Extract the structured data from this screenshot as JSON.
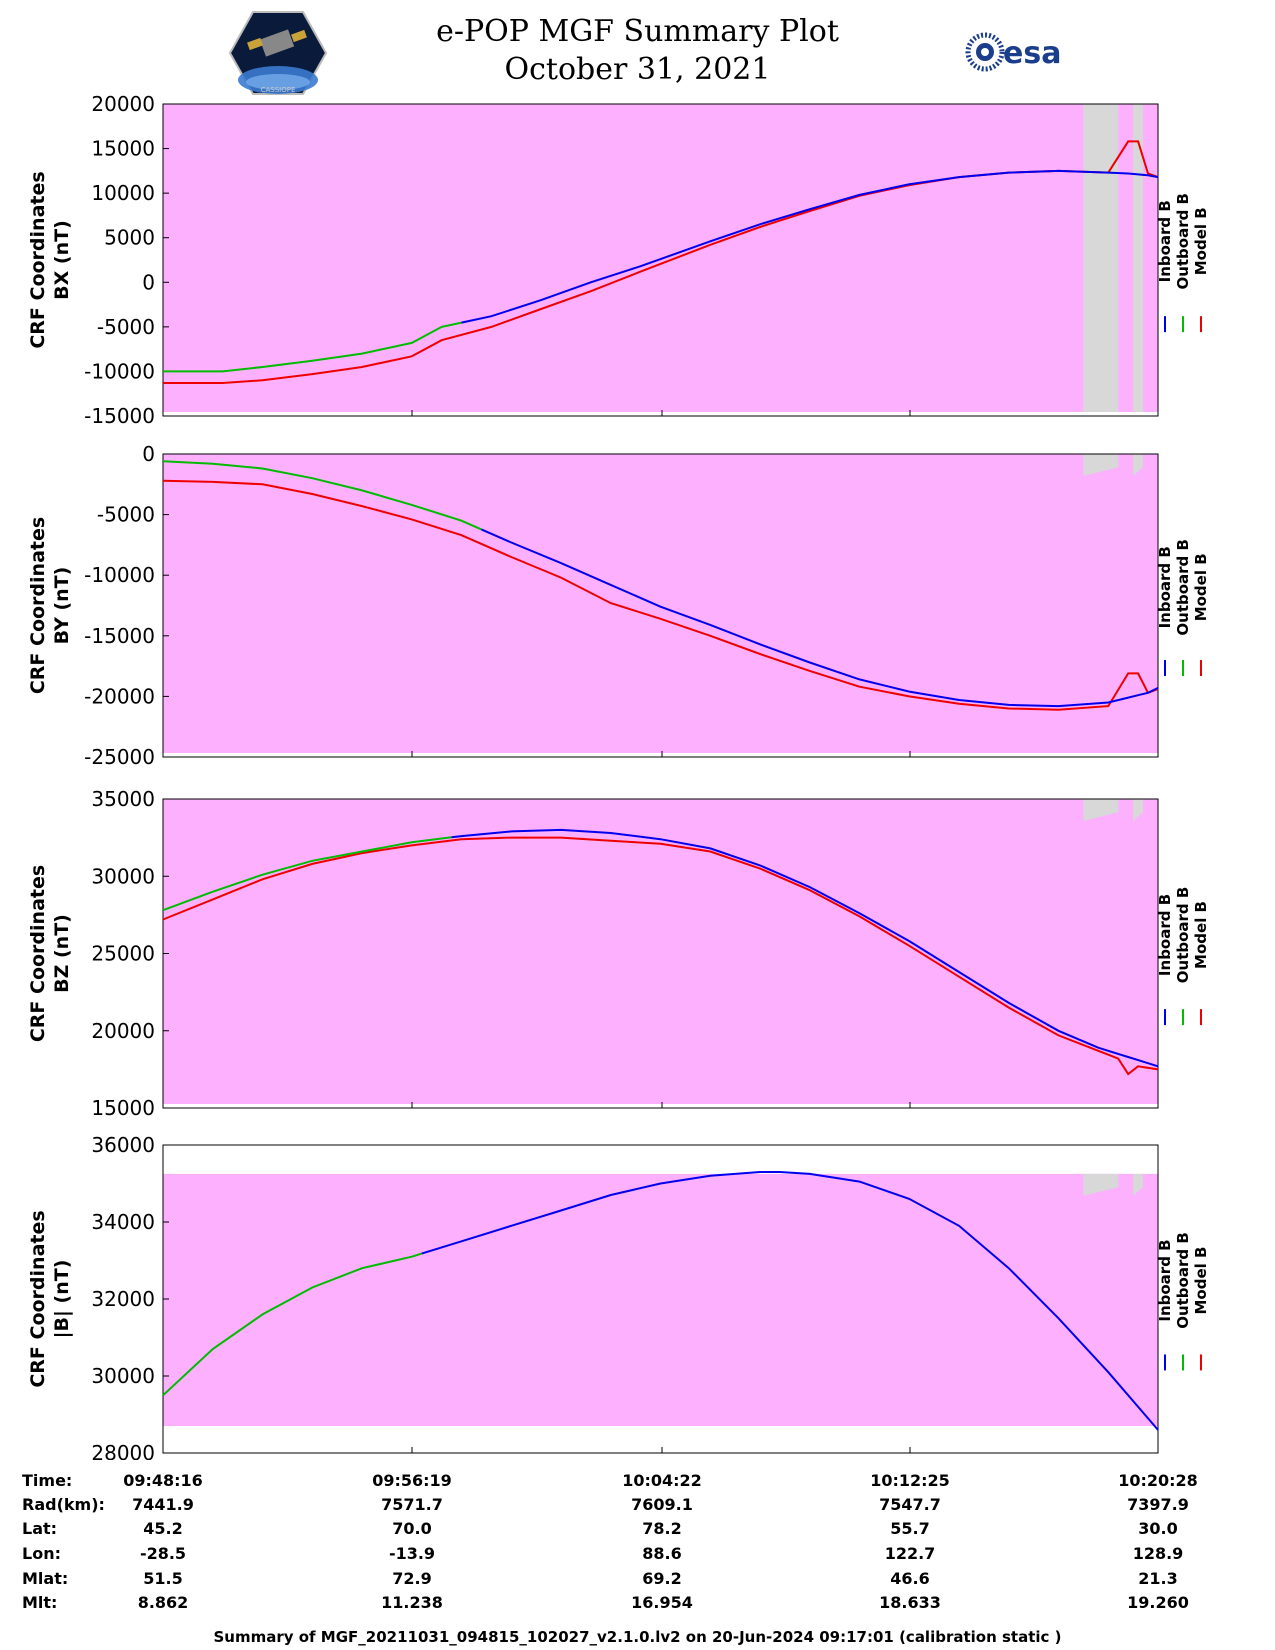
{
  "header": {
    "title": "e-POP MGF Summary Plot",
    "date": "October 31, 2021",
    "agency_logo_text": "esa",
    "mission_logo_text": "CASSIOPE"
  },
  "colors": {
    "background": "#fdb0fd",
    "gap": "#d8d8d8",
    "inboard": "#0000ee",
    "outboard": "#00bb00",
    "model": "#ee0000"
  },
  "legend": [
    "Inboard B",
    "Outboard B",
    "Model B"
  ],
  "chart_data": [
    {
      "type": "line",
      "ylabel_lines": [
        "CRF Coordinates",
        "BX (nT)"
      ],
      "ylim": [
        -15000,
        20000
      ],
      "yticks": [
        20000,
        15000,
        10000,
        5000,
        0,
        -5000,
        -10000,
        -15000
      ],
      "ytick_labels": [
        "20000",
        "15000",
        "10000",
        "5000",
        "0",
        "-5000",
        "-10000",
        "-15000"
      ],
      "x": [
        0,
        0.03,
        0.06,
        0.1,
        0.15,
        0.2,
        0.25,
        0.28,
        0.33,
        0.38,
        0.43,
        0.48,
        0.55,
        0.6,
        0.65,
        0.7,
        0.75,
        0.8,
        0.85,
        0.9,
        0.95,
        0.97,
        0.98,
        0.99,
        1.0
      ],
      "series": [
        {
          "name": "Inboard B",
          "color_key": "inboard",
          "from": 0.3,
          "values": [
            -10000,
            -10000,
            -10000,
            -9500,
            -8800,
            -8000,
            -6800,
            -5000,
            -3800,
            -2000,
            0,
            1800,
            4600,
            6500,
            8200,
            9800,
            11000,
            11800,
            12300,
            12500,
            12300,
            12200,
            12100,
            12000,
            11800
          ]
        },
        {
          "name": "Outboard B",
          "color_key": "outboard",
          "to": 0.3,
          "values": [
            -10000,
            -10000,
            -10000,
            -9500,
            -8800,
            -8000,
            -6800,
            -5000,
            -3800,
            -2000,
            0,
            1800,
            4600,
            6500,
            8200,
            9800,
            11000,
            11800,
            12300,
            12500,
            12300,
            12200,
            12100,
            12000,
            11800
          ]
        },
        {
          "name": "Model B",
          "color_key": "model",
          "values": [
            -11300,
            -11300,
            -11300,
            -11000,
            -10300,
            -9500,
            -8300,
            -6500,
            -5000,
            -3000,
            -1000,
            1200,
            4200,
            6200,
            8000,
            9700,
            10900,
            11800,
            12300,
            12500,
            12300,
            15800,
            15800,
            12200,
            11800
          ]
        }
      ],
      "gaps": [
        [
          0.925,
          0.96
        ],
        [
          0.975,
          0.985
        ]
      ]
    },
    {
      "type": "line",
      "ylabel_lines": [
        "CRF Coordinates",
        "BY (nT)"
      ],
      "ylim": [
        -25000,
        0
      ],
      "yticks": [
        0,
        -5000,
        -10000,
        -15000,
        -20000,
        -25000
      ],
      "ytick_labels": [
        "0",
        "-5000",
        "-10000",
        "-15000",
        "-20000",
        "-25000"
      ],
      "x": [
        0,
        0.05,
        0.1,
        0.15,
        0.2,
        0.25,
        0.3,
        0.35,
        0.4,
        0.45,
        0.5,
        0.55,
        0.6,
        0.65,
        0.7,
        0.75,
        0.8,
        0.85,
        0.9,
        0.95,
        0.97,
        0.98,
        0.99,
        1.0
      ],
      "series": [
        {
          "name": "Inboard B",
          "color_key": "inboard",
          "from": 0.32,
          "values": [
            -600,
            -800,
            -1200,
            -2000,
            -3000,
            -4200,
            -5500,
            -7300,
            -9000,
            -10800,
            -12600,
            -14100,
            -15700,
            -17200,
            -18600,
            -19600,
            -20300,
            -20700,
            -20800,
            -20500,
            -20100,
            -19900,
            -19700,
            -19300
          ]
        },
        {
          "name": "Outboard B",
          "color_key": "outboard",
          "to": 0.32,
          "values": [
            -600,
            -800,
            -1200,
            -2000,
            -3000,
            -4200,
            -5500,
            -7300,
            -9000,
            -10800,
            -12600,
            -14100,
            -15700,
            -17200,
            -18600,
            -19600,
            -20300,
            -20700,
            -20800,
            -20500,
            -20100,
            -19900,
            -19700,
            -19300
          ]
        },
        {
          "name": "Model B",
          "color_key": "model",
          "values": [
            -2200,
            -2300,
            -2500,
            -3300,
            -4300,
            -5400,
            -6700,
            -8500,
            -10200,
            -12300,
            -13600,
            -15000,
            -16500,
            -17900,
            -19200,
            -20000,
            -20600,
            -21000,
            -21100,
            -20800,
            -18100,
            -18100,
            -19700,
            -19400
          ]
        }
      ],
      "gaps": [
        [
          0.925,
          0.96
        ],
        [
          0.975,
          0.985
        ]
      ]
    },
    {
      "type": "line",
      "ylabel_lines": [
        "CRF Coordinates",
        "BZ (nT)"
      ],
      "ylim": [
        15000,
        35000
      ],
      "yticks": [
        35000,
        30000,
        25000,
        20000,
        15000
      ],
      "ytick_labels": [
        "35000",
        "30000",
        "25000",
        "20000",
        "15000"
      ],
      "x": [
        0,
        0.05,
        0.1,
        0.15,
        0.2,
        0.25,
        0.3,
        0.35,
        0.4,
        0.45,
        0.5,
        0.55,
        0.6,
        0.65,
        0.7,
        0.75,
        0.8,
        0.85,
        0.9,
        0.94,
        0.96,
        0.97,
        0.98,
        1.0
      ],
      "series": [
        {
          "name": "Inboard B",
          "color_key": "inboard",
          "from": 0.29,
          "values": [
            27800,
            29000,
            30100,
            31000,
            31600,
            32200,
            32600,
            32900,
            33000,
            32800,
            32400,
            31800,
            30700,
            29300,
            27600,
            25800,
            23800,
            21800,
            20000,
            18900,
            18500,
            18300,
            18100,
            17700
          ]
        },
        {
          "name": "Outboard B",
          "color_key": "outboard",
          "to": 0.29,
          "values": [
            27800,
            29000,
            30100,
            31000,
            31600,
            32200,
            32600,
            32900,
            33000,
            32800,
            32400,
            31800,
            30700,
            29300,
            27600,
            25800,
            23800,
            21800,
            20000,
            18900,
            18500,
            18300,
            18100,
            17700
          ]
        },
        {
          "name": "Model B",
          "color_key": "model",
          "values": [
            27200,
            28500,
            29800,
            30800,
            31500,
            32000,
            32400,
            32500,
            32500,
            32300,
            32100,
            31600,
            30500,
            29100,
            27400,
            25500,
            23500,
            21500,
            19700,
            18700,
            18200,
            17200,
            17700,
            17500
          ]
        }
      ],
      "gaps": [
        [
          0.925,
          0.96
        ],
        [
          0.975,
          0.985
        ]
      ]
    },
    {
      "type": "line",
      "ylabel_lines": [
        "CRF Coordinates",
        "|B| (nT)"
      ],
      "ylim": [
        28000,
        36000
      ],
      "yticks": [
        36000,
        34000,
        32000,
        30000,
        28000
      ],
      "ytick_labels": [
        "36000",
        "34000",
        "32000",
        "30000",
        "28000"
      ],
      "x": [
        0,
        0.05,
        0.1,
        0.15,
        0.2,
        0.25,
        0.3,
        0.35,
        0.4,
        0.45,
        0.5,
        0.55,
        0.6,
        0.62,
        0.65,
        0.7,
        0.75,
        0.8,
        0.85,
        0.9,
        0.95,
        1.0
      ],
      "series": [
        {
          "name": "Inboard B",
          "color_key": "inboard",
          "from": 0.26,
          "values": [
            29500,
            30700,
            31600,
            32300,
            32800,
            33100,
            33500,
            33900,
            34300,
            34700,
            35000,
            35200,
            35300,
            35300,
            35250,
            35050,
            34600,
            33900,
            32800,
            31500,
            30100,
            28600
          ]
        },
        {
          "name": "Outboard B",
          "color_key": "outboard",
          "to": 0.26,
          "values": [
            29500,
            30700,
            31600,
            32300,
            32800,
            33100,
            33500,
            33900,
            34300,
            34700,
            35000,
            35200,
            35300,
            35300,
            35250,
            35050,
            34600,
            33900,
            32800,
            31500,
            30100,
            28600
          ]
        }
      ],
      "gaps": [
        [
          0.925,
          0.96
        ],
        [
          0.975,
          0.985
        ]
      ],
      "background_range": [
        28700,
        35250
      ]
    }
  ],
  "table": {
    "row_labels": [
      "Time:",
      "Rad(km):",
      "Lat:",
      "Lon:",
      "Mlat:",
      "Mlt:"
    ],
    "columns": [
      [
        "09:48:16",
        "7441.9",
        "45.2",
        "-28.5",
        "51.5",
        "8.862"
      ],
      [
        "09:56:19",
        "7571.7",
        "70.0",
        "-13.9",
        "72.9",
        "11.238"
      ],
      [
        "10:04:22",
        "7609.1",
        "78.2",
        "88.6",
        "69.2",
        "16.954"
      ],
      [
        "10:12:25",
        "7547.7",
        "55.7",
        "122.7",
        "46.6",
        "18.633"
      ],
      [
        "10:20:28",
        "7397.9",
        "30.0",
        "128.9",
        "21.3",
        "19.260"
      ]
    ]
  },
  "footer": "Summary of MGF_20211031_094815_102027_v2.1.0.lv2 on 20-Jun-2024 09:17:01 (calibration static )"
}
